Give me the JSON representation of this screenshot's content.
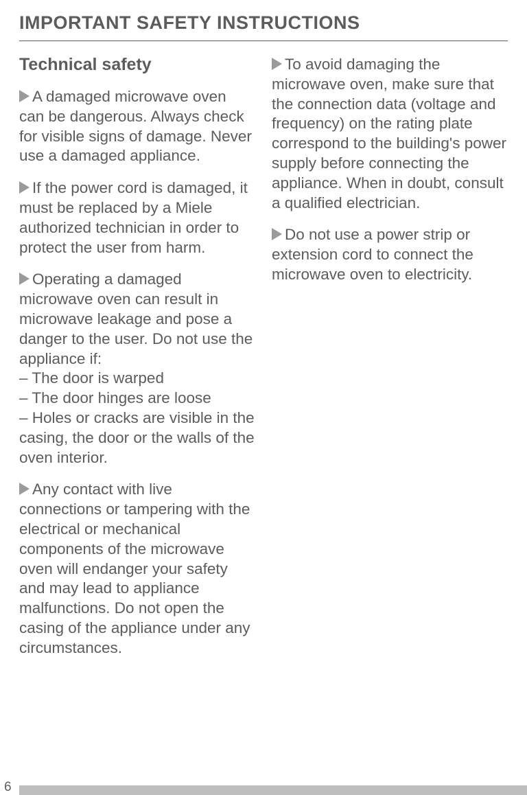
{
  "colors": {
    "text": "#5c5c5c",
    "arrow": "#9a9a9a",
    "footer_bar": "#bdbdbd",
    "background": "#ffffff",
    "rule": "#5c5c5c"
  },
  "typography": {
    "header_fontsize": 27,
    "subhead_fontsize": 25,
    "body_fontsize": 22.5,
    "body_lineheight": 1.28,
    "header_weight": "bold",
    "subhead_weight": "bold"
  },
  "header": "IMPORTANT SAFETY INSTRUCTIONS",
  "left": {
    "subhead": "Technical safety",
    "p1": "A damaged microwave oven can be dangerous. Always check for visible signs of damage. Never use a damaged appliance.",
    "p2": "If the power cord is damaged, it must be replaced by a Miele authorized technician in order to protect the user from harm.",
    "p3_intro": "Operating a damaged microwave oven can result in microwave leakage and pose a danger to the user. Do not use the appliance if:",
    "p3_b1": "– The door is warped",
    "p3_b2": "– The door hinges are loose",
    "p3_b3": "– Holes or cracks are visible in the casing, the door or the walls of the oven interior.",
    "p4": "Any contact with live connections or tampering with the electrical or mechanical components of the microwave oven will endanger your safety and may lead to appliance malfunctions. Do not open the casing of the appliance under any circumstances."
  },
  "right": {
    "p1": "To avoid damaging the microwave oven, make sure that the connection data (voltage and frequency) on the rating plate correspond to the  building's power supply before connecting the appliance. When in doubt, consult a qualified electrician.",
    "p2": "Do not use a power strip or extension cord to connect the microwave oven to electricity."
  },
  "page_number": "6"
}
